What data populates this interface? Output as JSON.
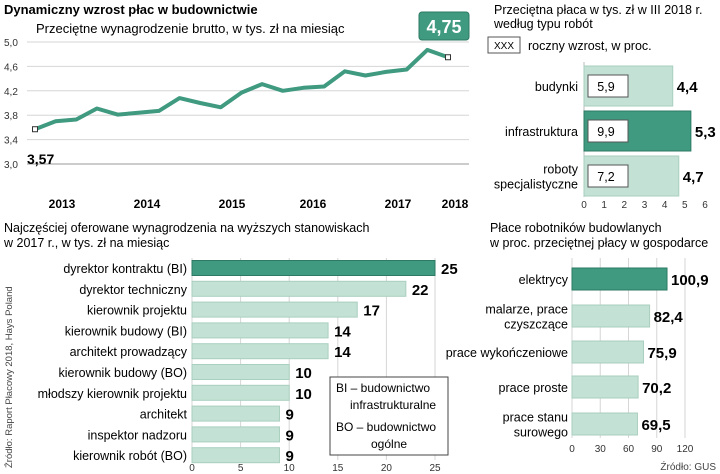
{
  "main_title": "Dynamiczny wzrost płac w budownictwie",
  "highlight_value": "4,75",
  "colors": {
    "accent": "#3f9a80",
    "light_bar": "#c4e1d5",
    "light_bar_stroke": "#a9cfbf",
    "grid": "#d6d6d6",
    "text": "#1a1a1a",
    "gray": "#666666"
  },
  "chart_data": [
    {
      "id": "line",
      "type": "line",
      "title": "Przeciętne wynagrodzenie brutto, w  tys. zł na miesiąc",
      "ylim": [
        3.0,
        5.0
      ],
      "yticks": [
        "3,0",
        "3,4",
        "3,8",
        "4,2",
        "4,6",
        "5,0"
      ],
      "ytick_values": [
        3.0,
        3.4,
        3.8,
        4.2,
        4.6,
        5.0
      ],
      "xticks": [
        "2013",
        "2014",
        "2015",
        "2016",
        "2017",
        "2018"
      ],
      "x": [
        0,
        1,
        2,
        3,
        4,
        5,
        6,
        7,
        8,
        9,
        10,
        11,
        12,
        13,
        14,
        15,
        16,
        17,
        18,
        19,
        20
      ],
      "values": [
        3.57,
        3.7,
        3.73,
        3.91,
        3.81,
        3.84,
        3.87,
        4.08,
        4.0,
        3.93,
        4.17,
        4.31,
        4.2,
        4.25,
        4.27,
        4.52,
        4.45,
        4.51,
        4.55,
        4.87,
        4.75
      ],
      "start_label": "3,57",
      "end_label": "4,75"
    },
    {
      "id": "types",
      "type": "bar",
      "title_lines": [
        "Przeciętna płaca w tys. zł w III 2018 r.",
        "według typu robót"
      ],
      "legend_box": "XXX",
      "legend_text": "roczny wzrost, w proc.",
      "categories": [
        [
          "budynki"
        ],
        [
          "infrastruktura"
        ],
        [
          "roboty",
          "specjalistyczne"
        ]
      ],
      "values": [
        4.4,
        5.3,
        4.7
      ],
      "value_labels": [
        "4,4",
        "5,3",
        "4,7"
      ],
      "growth_labels": [
        "5,9",
        "9,9",
        "7,2"
      ],
      "highlight_index": 1,
      "xlim": [
        0,
        6
      ],
      "xticks": [
        "0",
        "1",
        "2",
        "3",
        "4",
        "5",
        "6"
      ]
    },
    {
      "id": "positions",
      "type": "bar",
      "title_lines": [
        "Najczęściej oferowane wynagrodzenia na wyższych stanowiskach",
        "w 2017 r., w tys. zł na miesiąc"
      ],
      "categories": [
        "dyrektor kontraktu (BI)",
        "dyrektor techniczny",
        "kierownik projektu",
        "kierownik budowy (BI)",
        "architekt prowadzący",
        "kierownik budowy (BO)",
        "młodszy kierownik projektu",
        "architekt",
        "inspektor nadzoru",
        "kierownik robót (BO)"
      ],
      "values": [
        25,
        22,
        17,
        14,
        14,
        10,
        10,
        9,
        9,
        9
      ],
      "value_labels": [
        "25",
        "22",
        "17",
        "14",
        "14",
        "10",
        "10",
        "9",
        "9",
        "9"
      ],
      "highlight_index": 0,
      "xlim": [
        0,
        25
      ],
      "xticks": [
        "0",
        "5",
        "10",
        "15",
        "20",
        "25"
      ],
      "legend_lines": [
        "BI – budownictwo",
        "infrastrukturalne",
        "BO – budownictwo",
        "ogólne"
      ],
      "source": "Źródło: Raport Płacowy 2018, Hays Poland"
    },
    {
      "id": "workers",
      "type": "bar",
      "title_lines": [
        "Płace robotników budowlanych",
        "w proc. przeciętnej płacy w gospodarce"
      ],
      "categories": [
        [
          "elektrycy"
        ],
        [
          "malarze, prace",
          "czyszczące"
        ],
        [
          "prace wykończeniowe"
        ],
        [
          "prace proste"
        ],
        [
          "prace stanu",
          "surowego"
        ]
      ],
      "values": [
        100.9,
        82.4,
        75.9,
        70.2,
        69.5
      ],
      "value_labels": [
        "100,9",
        "82,4",
        "75,9",
        "70,2",
        "69,5"
      ],
      "highlight_index": 0,
      "xlim": [
        0,
        120
      ],
      "xticks": [
        "0",
        "30",
        "60",
        "90",
        "120"
      ],
      "source": "Źródło: GUS"
    }
  ]
}
